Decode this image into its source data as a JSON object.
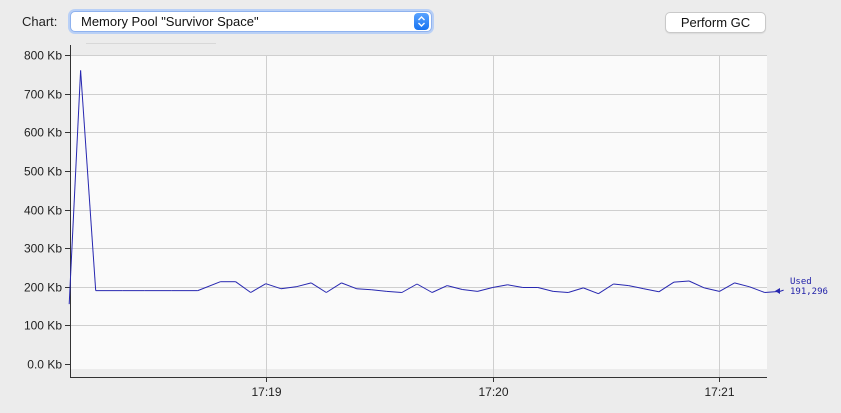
{
  "toolbar": {
    "chart_label": "Chart:",
    "selected_chart": "Memory Pool \"Survivor Space\"",
    "perform_gc_label": "Perform GC"
  },
  "colors": {
    "series_line": "#2727b0",
    "grid_line": "#cfcfcf",
    "plot_background": "#fafafa",
    "select_focus": "#b9d0f6"
  },
  "legend": {
    "name": "Used",
    "value": "191,296"
  },
  "chart_data": {
    "type": "line",
    "title": "",
    "xlabel": "",
    "ylabel": "",
    "y_unit": "Kb",
    "ylim": [
      0,
      800
    ],
    "y_ticks": [
      "0.0 Kb",
      "100 Kb",
      "200 Kb",
      "300 Kb",
      "400 Kb",
      "500 Kb",
      "600 Kb",
      "700 Kb",
      "800 Kb"
    ],
    "y_tick_values": [
      0,
      100,
      200,
      300,
      400,
      500,
      600,
      700,
      800
    ],
    "x_ticks": [
      "17:19",
      "17:20",
      "17:21"
    ],
    "x_tick_seconds": [
      1140,
      1200,
      1260
    ],
    "xlim_seconds": [
      1088.2,
      1272.6
    ],
    "grid": true,
    "legend_position": "right",
    "series": [
      {
        "name": "Used",
        "points": [
          [
            "17:18:08",
            155
          ],
          [
            "17:18:11",
            760
          ],
          [
            "17:18:15",
            190
          ],
          [
            "17:18:22",
            190
          ],
          [
            "17:18:28",
            190
          ],
          [
            "17:18:35",
            190
          ],
          [
            "17:18:42",
            190
          ],
          [
            "17:18:48",
            213
          ],
          [
            "17:18:52",
            213
          ],
          [
            "17:18:56",
            185
          ],
          [
            "17:19:00",
            208
          ],
          [
            "17:19:04",
            195
          ],
          [
            "17:19:08",
            200
          ],
          [
            "17:19:12",
            210
          ],
          [
            "17:19:16",
            185
          ],
          [
            "17:19:20",
            210
          ],
          [
            "17:19:24",
            195
          ],
          [
            "17:19:28",
            192
          ],
          [
            "17:19:32",
            188
          ],
          [
            "17:19:36",
            185
          ],
          [
            "17:19:40",
            207
          ],
          [
            "17:19:44",
            185
          ],
          [
            "17:19:48",
            203
          ],
          [
            "17:19:52",
            193
          ],
          [
            "17:19:56",
            188
          ],
          [
            "17:20:00",
            198
          ],
          [
            "17:20:04",
            205
          ],
          [
            "17:20:08",
            198
          ],
          [
            "17:20:12",
            198
          ],
          [
            "17:20:16",
            188
          ],
          [
            "17:20:20",
            185
          ],
          [
            "17:20:24",
            197
          ],
          [
            "17:20:28",
            182
          ],
          [
            "17:20:32",
            207
          ],
          [
            "17:20:36",
            203
          ],
          [
            "17:20:40",
            195
          ],
          [
            "17:20:44",
            187
          ],
          [
            "17:20:48",
            212
          ],
          [
            "17:20:52",
            215
          ],
          [
            "17:20:56",
            197
          ],
          [
            "17:21:00",
            188
          ],
          [
            "17:21:04",
            210
          ],
          [
            "17:21:08",
            200
          ],
          [
            "17:21:12",
            185
          ],
          [
            "17:21:16",
            188
          ],
          [
            "17:21:17",
            191.3
          ]
        ]
      }
    ]
  }
}
